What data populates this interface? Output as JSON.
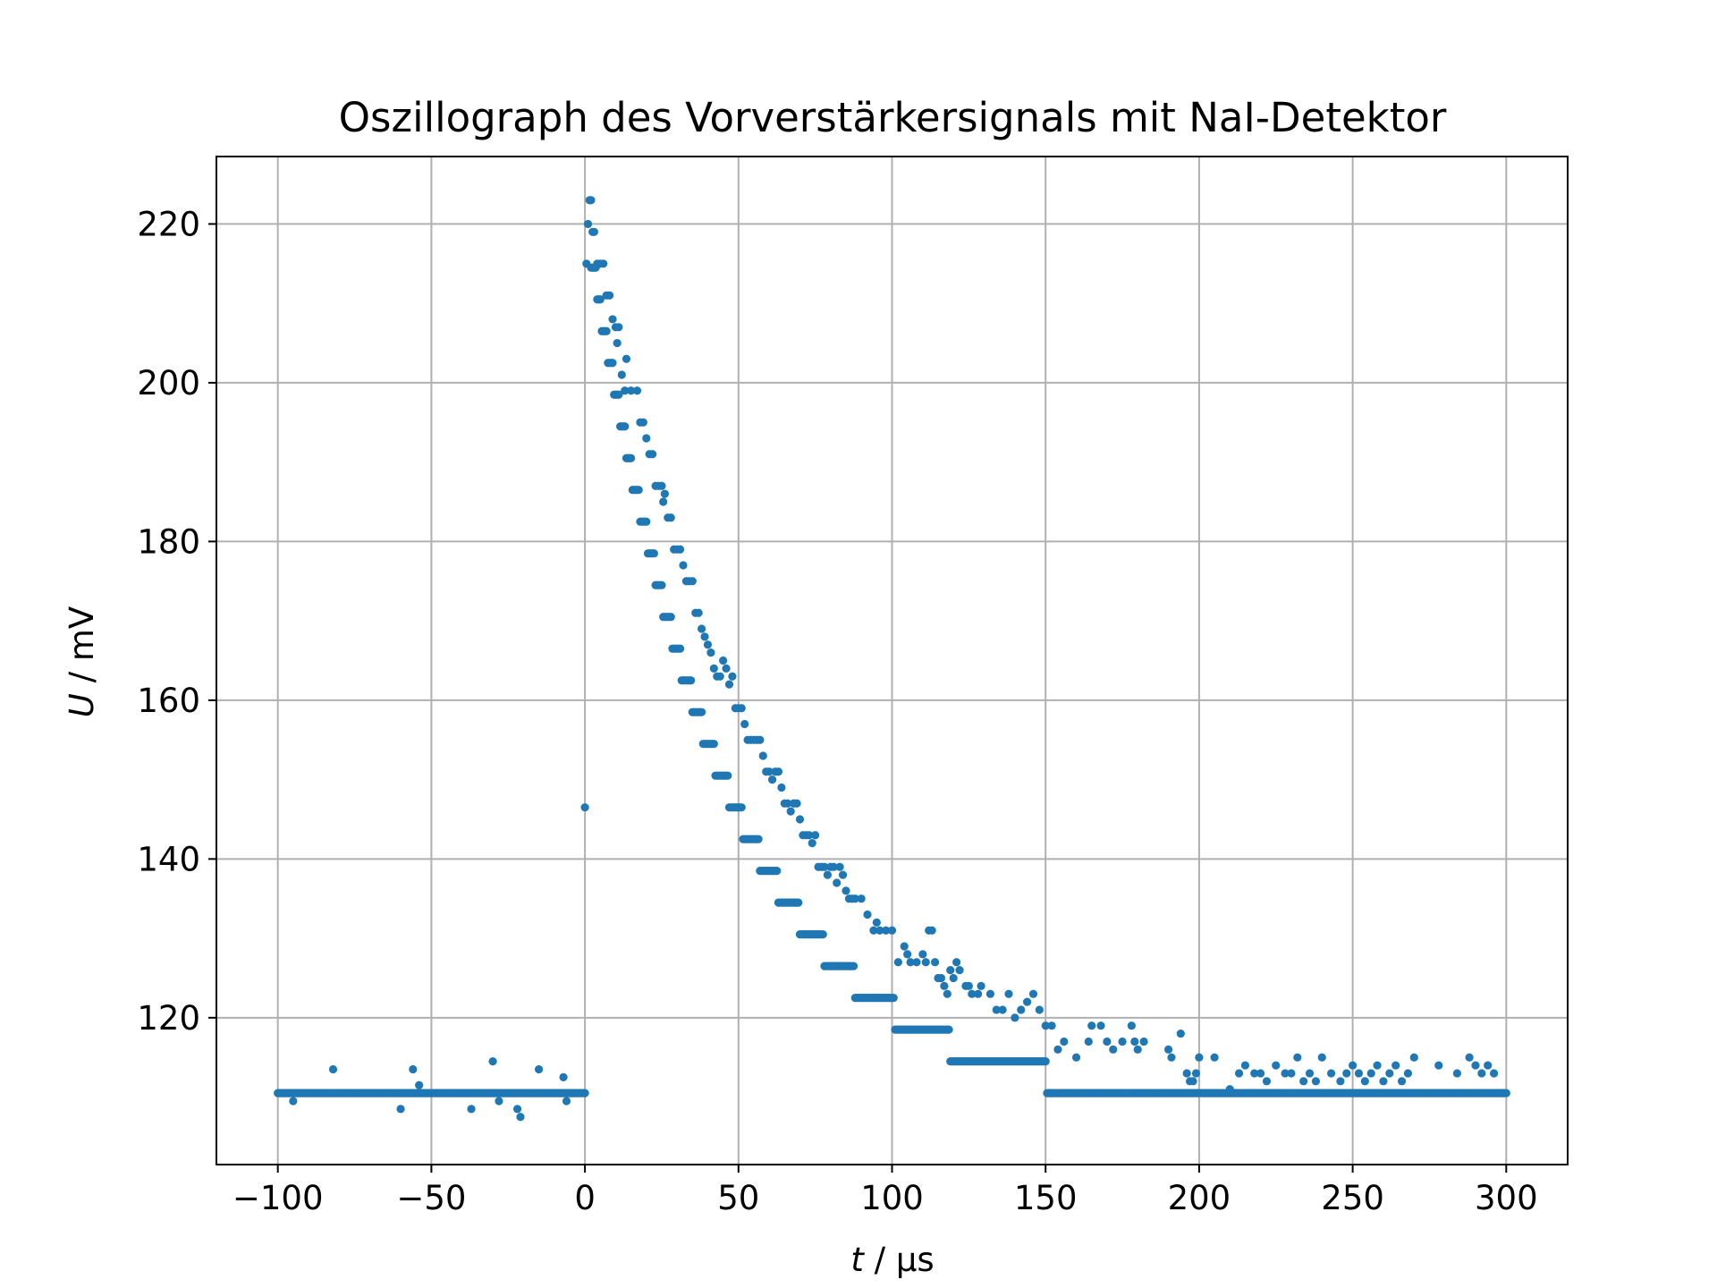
{
  "chart_data": {
    "type": "scatter",
    "title": "Oszillograph des Vorverstärkersignals mit NaI-Detektor",
    "xlabel_var": "t",
    "xlabel_unit": " / μs",
    "ylabel_var": "U",
    "ylabel_unit": " / mV",
    "xlim": [
      -120,
      320
    ],
    "ylim": [
      101.5,
      228.5
    ],
    "xticks": [
      -100,
      -50,
      0,
      50,
      100,
      150,
      200,
      250,
      300
    ],
    "xtick_labels": [
      "−100",
      "−50",
      "0",
      "50",
      "100",
      "150",
      "200",
      "250",
      "300"
    ],
    "yticks": [
      120,
      140,
      160,
      180,
      200,
      220
    ],
    "ytick_labels": [
      "120",
      "140",
      "160",
      "180",
      "200",
      "220"
    ],
    "grid": true,
    "colors": {
      "series": "#1f77b4",
      "grid": "#b0b0b0",
      "axes": "#000000"
    },
    "series": [
      {
        "baseline_runs": [
          {
            "x_start": -100,
            "x_end": 0,
            "step": 0.5,
            "y": 110.5
          },
          {
            "x_start": 2,
            "x_end": 300,
            "step": 0.5,
            "model": "decay",
            "baseline": 110.5,
            "amplitude": 112.5,
            "tau": 45,
            "quantum": 4,
            "offset": 0.5
          }
        ],
        "points": [
          [
            -95,
            109.5
          ],
          [
            -82,
            113.5
          ],
          [
            -60,
            108.5
          ],
          [
            -56,
            113.5
          ],
          [
            -54,
            111.5
          ],
          [
            -37,
            108.5
          ],
          [
            -30,
            114.5
          ],
          [
            -28,
            109.5
          ],
          [
            -22,
            108.5
          ],
          [
            -21,
            107.5
          ],
          [
            -15,
            113.5
          ],
          [
            -7,
            112.5
          ],
          [
            -6,
            109.5
          ],
          [
            0,
            146.5
          ],
          [
            0.5,
            215
          ],
          [
            1,
            220
          ],
          [
            1.5,
            223
          ],
          [
            2,
            223
          ],
          [
            2.5,
            219
          ],
          [
            3,
            219
          ],
          [
            4,
            215
          ],
          [
            5,
            215
          ],
          [
            6,
            215
          ],
          [
            7,
            211
          ],
          [
            8,
            211
          ],
          [
            9,
            208
          ],
          [
            10,
            207
          ],
          [
            10.5,
            205
          ],
          [
            11,
            207
          ],
          [
            12,
            201
          ],
          [
            13,
            199
          ],
          [
            13.5,
            203
          ],
          [
            15,
            199
          ],
          [
            17,
            199
          ],
          [
            18,
            195
          ],
          [
            19,
            195
          ],
          [
            20,
            193
          ],
          [
            21,
            191
          ],
          [
            22,
            191
          ],
          [
            23,
            187
          ],
          [
            24,
            187
          ],
          [
            25,
            187
          ],
          [
            25.5,
            185
          ],
          [
            26,
            186
          ],
          [
            27,
            183
          ],
          [
            28,
            183
          ],
          [
            29,
            179
          ],
          [
            30,
            179
          ],
          [
            31,
            179
          ],
          [
            32,
            177
          ],
          [
            33,
            175
          ],
          [
            34,
            175
          ],
          [
            35,
            175
          ],
          [
            36,
            171
          ],
          [
            37,
            171
          ],
          [
            38,
            169
          ],
          [
            39,
            168
          ],
          [
            40,
            167
          ],
          [
            41,
            166
          ],
          [
            42,
            164
          ],
          [
            43,
            163
          ],
          [
            44,
            163
          ],
          [
            45,
            165
          ],
          [
            46,
            164
          ],
          [
            47,
            162
          ],
          [
            48,
            163
          ],
          [
            49,
            159
          ],
          [
            50,
            159
          ],
          [
            51,
            159
          ],
          [
            52,
            157
          ],
          [
            53,
            155
          ],
          [
            54,
            155
          ],
          [
            55,
            155
          ],
          [
            56,
            155
          ],
          [
            57,
            155
          ],
          [
            58,
            153
          ],
          [
            59,
            151
          ],
          [
            60,
            151
          ],
          [
            61,
            150
          ],
          [
            62,
            151
          ],
          [
            63,
            151
          ],
          [
            64,
            149
          ],
          [
            65,
            147
          ],
          [
            66,
            147
          ],
          [
            67,
            146
          ],
          [
            68,
            147
          ],
          [
            69,
            147
          ],
          [
            70,
            145
          ],
          [
            71,
            143
          ],
          [
            72,
            143
          ],
          [
            73,
            143
          ],
          [
            74,
            142
          ],
          [
            75,
            143
          ],
          [
            76,
            139
          ],
          [
            77,
            139
          ],
          [
            78,
            139
          ],
          [
            79,
            138
          ],
          [
            80,
            139
          ],
          [
            81,
            139
          ],
          [
            82,
            137
          ],
          [
            83,
            139
          ],
          [
            84,
            138
          ],
          [
            85,
            136
          ],
          [
            86,
            135
          ],
          [
            87,
            135
          ],
          [
            88,
            135
          ],
          [
            90,
            135
          ],
          [
            92,
            133
          ],
          [
            94,
            131
          ],
          [
            95,
            132
          ],
          [
            96,
            131
          ],
          [
            98,
            131
          ],
          [
            100,
            131
          ],
          [
            102,
            127
          ],
          [
            104,
            129
          ],
          [
            105,
            128
          ],
          [
            106,
            127
          ],
          [
            108,
            127
          ],
          [
            110,
            128
          ],
          [
            111,
            127
          ],
          [
            112,
            131
          ],
          [
            113,
            131
          ],
          [
            114,
            127
          ],
          [
            115,
            125
          ],
          [
            116,
            125
          ],
          [
            117,
            124
          ],
          [
            118,
            123
          ],
          [
            119,
            126
          ],
          [
            120,
            125
          ],
          [
            121,
            127
          ],
          [
            122,
            126
          ],
          [
            124,
            124
          ],
          [
            125,
            124
          ],
          [
            126,
            123
          ],
          [
            128,
            123
          ],
          [
            129,
            124
          ],
          [
            132,
            123
          ],
          [
            134,
            121
          ],
          [
            136,
            121
          ],
          [
            138,
            123
          ],
          [
            140,
            120
          ],
          [
            142,
            121
          ],
          [
            144,
            122
          ],
          [
            146,
            123
          ],
          [
            148,
            121
          ],
          [
            150,
            119
          ],
          [
            152,
            119
          ],
          [
            154,
            116
          ],
          [
            156,
            117
          ],
          [
            160,
            115
          ],
          [
            164,
            117
          ],
          [
            165,
            119
          ],
          [
            168,
            119
          ],
          [
            170,
            117
          ],
          [
            172,
            116
          ],
          [
            175,
            117
          ],
          [
            178,
            119
          ],
          [
            179,
            117
          ],
          [
            180,
            116
          ],
          [
            182,
            117
          ],
          [
            190,
            116
          ],
          [
            191,
            115
          ],
          [
            194,
            118
          ],
          [
            196,
            113
          ],
          [
            197,
            112
          ],
          [
            198,
            112
          ],
          [
            199,
            113
          ],
          [
            200,
            115
          ],
          [
            205,
            115
          ],
          [
            210,
            111
          ],
          [
            213,
            113
          ],
          [
            215,
            114
          ],
          [
            218,
            113
          ],
          [
            220,
            113
          ],
          [
            222,
            112
          ],
          [
            225,
            114
          ],
          [
            228,
            113
          ],
          [
            230,
            113
          ],
          [
            232,
            115
          ],
          [
            234,
            112
          ],
          [
            236,
            113
          ],
          [
            238,
            112
          ],
          [
            240,
            115
          ],
          [
            243,
            113
          ],
          [
            246,
            112
          ],
          [
            248,
            113
          ],
          [
            250,
            114
          ],
          [
            252,
            113
          ],
          [
            254,
            112
          ],
          [
            256,
            113
          ],
          [
            258,
            114
          ],
          [
            260,
            112
          ],
          [
            262,
            113
          ],
          [
            264,
            114
          ],
          [
            266,
            112
          ],
          [
            268,
            113
          ],
          [
            270,
            115
          ],
          [
            278,
            114
          ],
          [
            284,
            113
          ],
          [
            288,
            115
          ],
          [
            290,
            114
          ],
          [
            292,
            113
          ],
          [
            294,
            114
          ],
          [
            296,
            113
          ]
        ]
      }
    ]
  }
}
